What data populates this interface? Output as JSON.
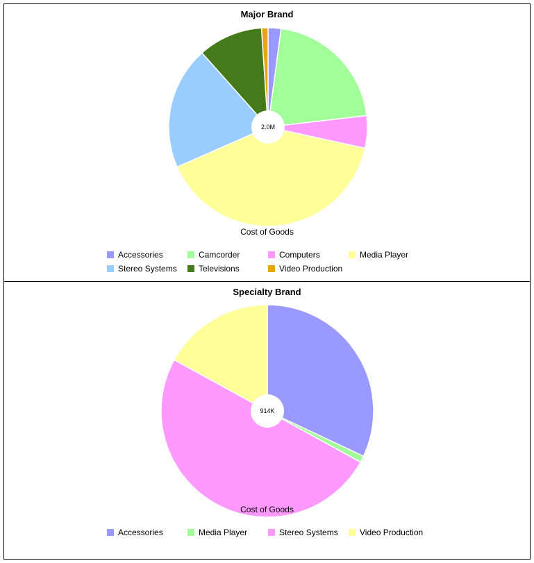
{
  "colors": {
    "Accessories": "#9999ff",
    "Camcorder": "#a0ff99",
    "Computers": "#ff99ff",
    "Media Player": "#ffff99",
    "Stereo Systems": "#99ccff",
    "Televisions": "#447a1a",
    "Video Production": "#e8a317"
  },
  "chart_data": [
    {
      "type": "pie",
      "title": "Major Brand",
      "caption": "Cost of Goods",
      "center_label": "2.0M",
      "slices": [
        {
          "label": "Accessories",
          "value": 2.0,
          "color": "#9999ff"
        },
        {
          "label": "Camcorder",
          "value": 20.0,
          "color": "#a0ff99"
        },
        {
          "label": "Computers",
          "value": 5.0,
          "color": "#ff99ff"
        },
        {
          "label": "Media Player",
          "value": 38.0,
          "color": "#ffff99"
        },
        {
          "label": "Stereo Systems",
          "value": 19.0,
          "color": "#99ccff"
        },
        {
          "label": "Televisions",
          "value": 10.0,
          "color": "#447a1a"
        },
        {
          "label": "Video Production",
          "value": 1.0,
          "color": "#e8a317"
        }
      ],
      "legend": [
        "Accessories",
        "Camcorder",
        "Computers",
        "Media Player",
        "Stereo Systems",
        "Televisions",
        "Video Production"
      ]
    },
    {
      "type": "pie",
      "title": "Specialty Brand",
      "caption": "Cost of Goods",
      "center_label": "914K",
      "slices": [
        {
          "label": "Accessories",
          "value": 32.0,
          "color": "#9999ff"
        },
        {
          "label": "Media Player",
          "value": 1.0,
          "color": "#a0ff99"
        },
        {
          "label": "Stereo Systems",
          "value": 50.0,
          "color": "#ff99ff"
        },
        {
          "label": "Video Production",
          "value": 17.0,
          "color": "#ffff99"
        }
      ],
      "legend": [
        "Accessories",
        "Media Player",
        "Stereo Systems",
        "Video Production"
      ]
    }
  ]
}
